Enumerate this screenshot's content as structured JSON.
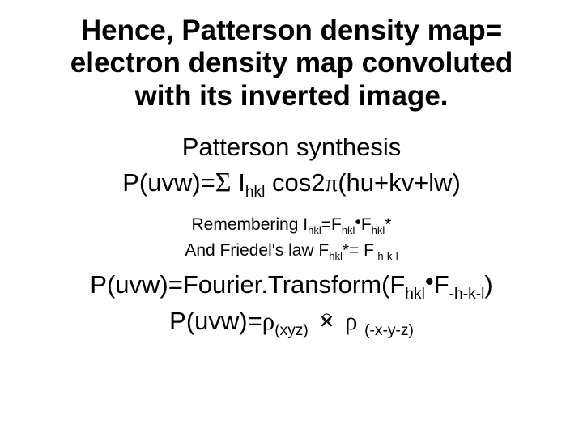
{
  "colors": {
    "bg": "#ffffff",
    "text": "#000000"
  },
  "title": {
    "l1": "Hence, Patterson density map=",
    "l2": "electron density map convoluted",
    "l3": "with its inverted image."
  },
  "synth_label": "Patterson synthesis",
  "eq1": {
    "lhs": "P(uvw)=",
    "sum": "Σ",
    "nbsp": " ",
    "I": "I",
    "hkl": "hkl",
    "mid": "  cos2",
    "pi": "π",
    "rhs": "(hu+kv+lw)"
  },
  "note1": {
    "a": "Remembering I",
    "hkl": "hkl",
    "eqF": "=F",
    "dot": "•",
    "F2": "F",
    "star": "*"
  },
  "note2": {
    "a": "And Friedel's law F",
    "hkl": "hkl",
    "eq": "*= F",
    "mhkl": "-h-k-l"
  },
  "eq2": {
    "a": "P(uvw)=Fourier.Transform(F",
    "hkl": "hkl",
    "dot": "•",
    "F": "F",
    "mhkl": "-h-k-l",
    "close": ")"
  },
  "eq3": {
    "a": "P(uvw)=",
    "rho": "ρ",
    "xyz": "(xyz)",
    "sp": " ",
    "rho2": "ρ",
    "sp2": " ",
    "mxyz": "(-x-y-z)"
  }
}
